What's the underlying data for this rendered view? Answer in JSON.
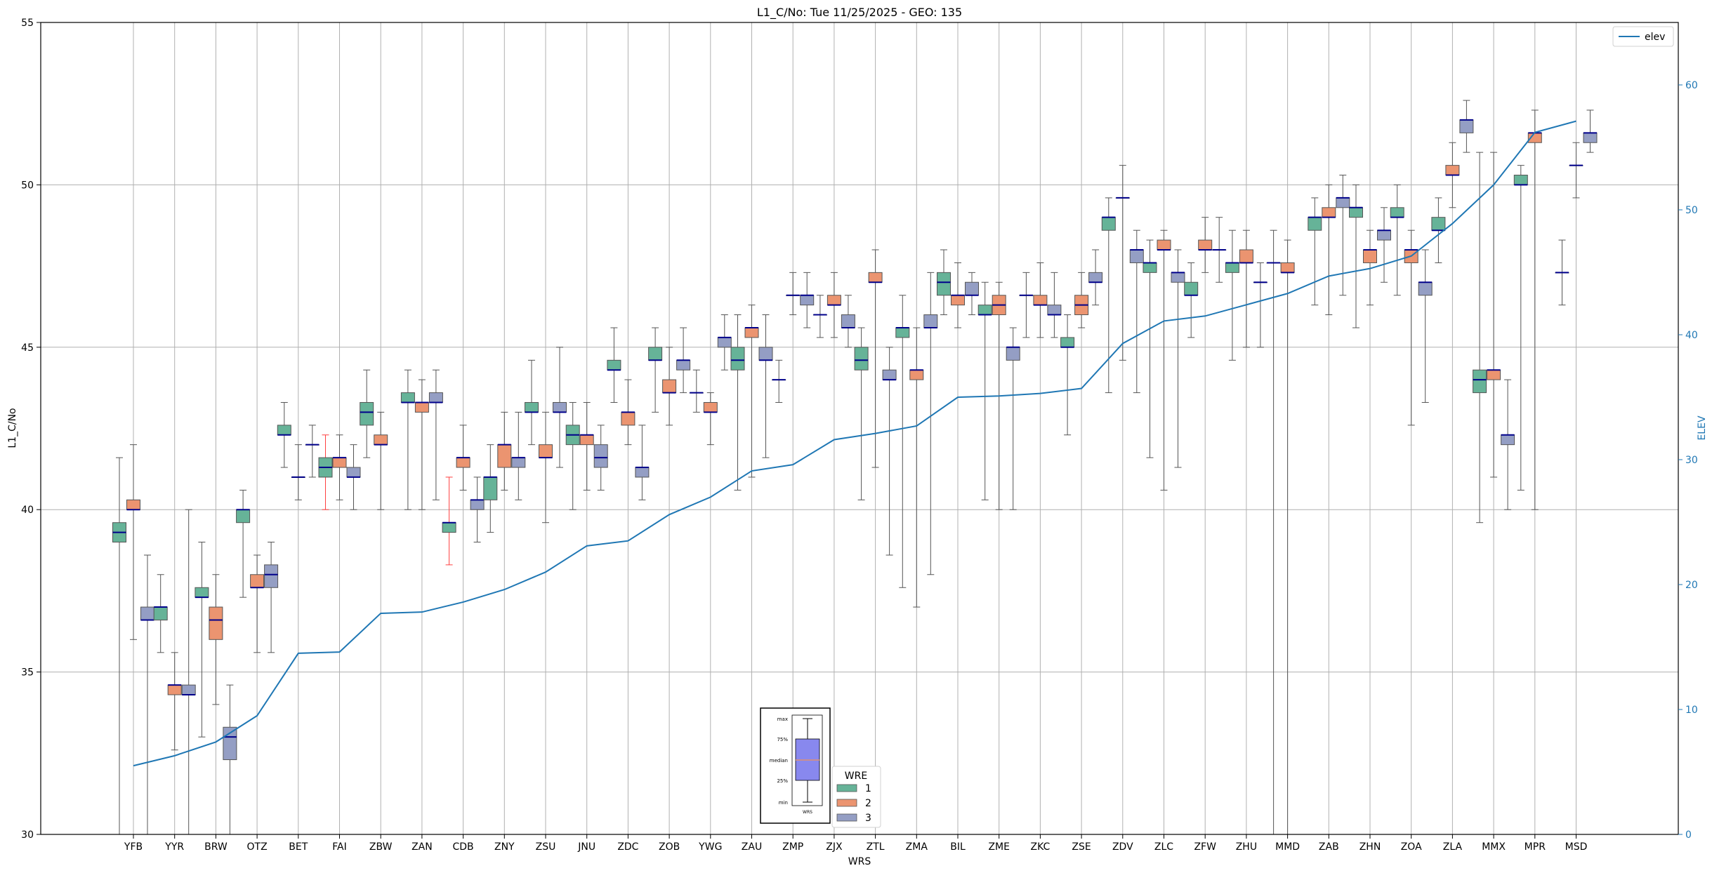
{
  "chart_data": {
    "type": "box",
    "title": "L1_C/No: Tue 11/25/2025 - GEO: 135",
    "xlabel": "WRS",
    "ylabel": "L1_C/No",
    "y2label": "ELEV",
    "ylim": [
      30,
      55
    ],
    "y2lim": [
      0,
      65
    ],
    "yticks": [
      30,
      35,
      40,
      45,
      50,
      55
    ],
    "y2ticks": [
      0,
      10,
      20,
      30,
      40,
      50,
      60
    ],
    "grid": true,
    "colors": {
      "1": "#66b398",
      "2": "#eb9470",
      "3": "#949ec4",
      "median": "#00008b",
      "elev": "#1f77b4",
      "alert": "#ff4040"
    },
    "categories": [
      "YFB",
      "YYR",
      "BRW",
      "OTZ",
      "BET",
      "FAI",
      "ZBW",
      "ZAN",
      "CDB",
      "ZNY",
      "ZSU",
      "JNU",
      "ZDC",
      "ZOB",
      "YWG",
      "ZAU",
      "ZMP",
      "ZJX",
      "ZTL",
      "ZMA",
      "BIL",
      "ZME",
      "ZKC",
      "ZSE",
      "ZDV",
      "ZLC",
      "ZFW",
      "ZHU",
      "MMD",
      "ZAB",
      "ZHN",
      "ZOA",
      "ZLA",
      "MMX",
      "MPR",
      "MSD"
    ],
    "boxes": [
      {
        "cat": "YFB",
        "wre": 1,
        "min": 30.0,
        "q1": 39.0,
        "median": 39.3,
        "q3": 39.6,
        "max": 41.6
      },
      {
        "cat": "YFB",
        "wre": 2,
        "min": 36.0,
        "q1": 40.0,
        "median": 40.0,
        "q3": 40.3,
        "max": 42.0
      },
      {
        "cat": "YFB",
        "wre": 3,
        "min": 30.0,
        "q1": 36.6,
        "median": 36.6,
        "q3": 37.0,
        "max": 38.6
      },
      {
        "cat": "YYR",
        "wre": 1,
        "min": 35.6,
        "q1": 36.6,
        "median": 37.0,
        "q3": 37.0,
        "max": 38.0
      },
      {
        "cat": "YYR",
        "wre": 2,
        "min": 32.6,
        "q1": 34.3,
        "median": 34.6,
        "q3": 34.6,
        "max": 35.6
      },
      {
        "cat": "YYR",
        "wre": 3,
        "min": 30.0,
        "q1": 34.3,
        "median": 34.3,
        "q3": 34.6,
        "max": 40.0
      },
      {
        "cat": "BRW",
        "wre": 1,
        "min": 33.0,
        "q1": 37.3,
        "median": 37.3,
        "q3": 37.6,
        "max": 39.0
      },
      {
        "cat": "BRW",
        "wre": 2,
        "min": 34.0,
        "q1": 36.0,
        "median": 36.6,
        "q3": 37.0,
        "max": 38.0
      },
      {
        "cat": "BRW",
        "wre": 3,
        "min": 30.0,
        "q1": 32.3,
        "median": 33.0,
        "q3": 33.3,
        "max": 34.6
      },
      {
        "cat": "OTZ",
        "wre": 1,
        "min": 37.3,
        "q1": 39.6,
        "median": 40.0,
        "q3": 40.0,
        "max": 40.6
      },
      {
        "cat": "OTZ",
        "wre": 2,
        "min": 35.6,
        "q1": 37.6,
        "median": 37.6,
        "q3": 38.0,
        "max": 38.6
      },
      {
        "cat": "OTZ",
        "wre": 3,
        "min": 35.6,
        "q1": 37.6,
        "median": 38.0,
        "q3": 38.3,
        "max": 39.0
      },
      {
        "cat": "BET",
        "wre": 1,
        "min": 41.3,
        "q1": 42.3,
        "median": 42.3,
        "q3": 42.6,
        "max": 43.3
      },
      {
        "cat": "BET",
        "wre": 2,
        "min": 40.3,
        "q1": 41.0,
        "median": 41.0,
        "q3": 41.0,
        "max": 42.0
      },
      {
        "cat": "BET",
        "wre": 3,
        "min": 41.0,
        "q1": 42.0,
        "median": 42.0,
        "q3": 42.0,
        "max": 42.6
      },
      {
        "cat": "FAI",
        "wre": 1,
        "min": 40.0,
        "q1": 41.0,
        "median": 41.3,
        "q3": 41.6,
        "max": 42.3,
        "alert": true
      },
      {
        "cat": "FAI",
        "wre": 2,
        "min": 40.3,
        "q1": 41.3,
        "median": 41.6,
        "q3": 41.6,
        "max": 42.3
      },
      {
        "cat": "FAI",
        "wre": 3,
        "min": 40.0,
        "q1": 41.0,
        "median": 41.0,
        "q3": 41.3,
        "max": 42.0
      },
      {
        "cat": "ZBW",
        "wre": 1,
        "min": 41.6,
        "q1": 42.6,
        "median": 43.0,
        "q3": 43.3,
        "max": 44.3
      },
      {
        "cat": "ZBW",
        "wre": 2,
        "min": 40.0,
        "q1": 42.0,
        "median": 42.0,
        "q3": 42.3,
        "max": 43.0
      },
      {
        "cat": "ZAN",
        "wre": 1,
        "min": 40.0,
        "q1": 43.3,
        "median": 43.3,
        "q3": 43.6,
        "max": 44.3
      },
      {
        "cat": "ZAN",
        "wre": 2,
        "min": 40.0,
        "q1": 43.0,
        "median": 43.3,
        "q3": 43.3,
        "max": 44.0
      },
      {
        "cat": "ZAN",
        "wre": 3,
        "min": 40.3,
        "q1": 43.3,
        "median": 43.3,
        "q3": 43.6,
        "max": 44.3
      },
      {
        "cat": "CDB",
        "wre": 1,
        "min": 38.3,
        "q1": 39.3,
        "median": 39.6,
        "q3": 39.6,
        "max": 41.0,
        "alert": true
      },
      {
        "cat": "CDB",
        "wre": 2,
        "min": 40.6,
        "q1": 41.3,
        "median": 41.6,
        "q3": 41.6,
        "max": 42.6
      },
      {
        "cat": "CDB",
        "wre": 3,
        "min": 39.0,
        "q1": 40.0,
        "median": 40.3,
        "q3": 40.3,
        "max": 41.0
      },
      {
        "cat": "ZNY",
        "wre": 1,
        "min": 39.3,
        "q1": 40.3,
        "median": 41.0,
        "q3": 41.0,
        "max": 42.0
      },
      {
        "cat": "ZNY",
        "wre": 2,
        "min": 40.6,
        "q1": 41.3,
        "median": 42.0,
        "q3": 42.0,
        "max": 43.0
      },
      {
        "cat": "ZNY",
        "wre": 3,
        "min": 40.3,
        "q1": 41.3,
        "median": 41.6,
        "q3": 41.6,
        "max": 43.0
      },
      {
        "cat": "ZSU",
        "wre": 1,
        "min": 42.0,
        "q1": 43.0,
        "median": 43.0,
        "q3": 43.3,
        "max": 44.6
      },
      {
        "cat": "ZSU",
        "wre": 2,
        "min": 39.6,
        "q1": 41.6,
        "median": 41.6,
        "q3": 42.0,
        "max": 43.0
      },
      {
        "cat": "ZSU",
        "wre": 3,
        "min": 41.3,
        "q1": 43.0,
        "median": 43.0,
        "q3": 43.3,
        "max": 45.0
      },
      {
        "cat": "JNU",
        "wre": 1,
        "min": 40.0,
        "q1": 42.0,
        "median": 42.3,
        "q3": 42.6,
        "max": 43.3
      },
      {
        "cat": "JNU",
        "wre": 2,
        "min": 40.6,
        "q1": 42.0,
        "median": 42.3,
        "q3": 42.3,
        "max": 43.3
      },
      {
        "cat": "JNU",
        "wre": 3,
        "min": 40.6,
        "q1": 41.3,
        "median": 41.6,
        "q3": 42.0,
        "max": 42.6
      },
      {
        "cat": "ZDC",
        "wre": 1,
        "min": 43.3,
        "q1": 44.3,
        "median": 44.3,
        "q3": 44.6,
        "max": 45.6
      },
      {
        "cat": "ZDC",
        "wre": 2,
        "min": 42.0,
        "q1": 42.6,
        "median": 43.0,
        "q3": 43.0,
        "max": 44.0
      },
      {
        "cat": "ZDC",
        "wre": 3,
        "min": 40.3,
        "q1": 41.0,
        "median": 41.3,
        "q3": 41.3,
        "max": 42.6
      },
      {
        "cat": "ZOB",
        "wre": 1,
        "min": 43.0,
        "q1": 44.6,
        "median": 44.6,
        "q3": 45.0,
        "max": 45.6
      },
      {
        "cat": "ZOB",
        "wre": 2,
        "min": 42.6,
        "q1": 43.6,
        "median": 43.6,
        "q3": 44.0,
        "max": 45.0
      },
      {
        "cat": "ZOB",
        "wre": 3,
        "min": 43.6,
        "q1": 44.3,
        "median": 44.6,
        "q3": 44.6,
        "max": 45.6
      },
      {
        "cat": "YWG",
        "wre": 1,
        "min": 43.0,
        "q1": 43.6,
        "median": 43.6,
        "q3": 43.6,
        "max": 44.3
      },
      {
        "cat": "YWG",
        "wre": 2,
        "min": 42.0,
        "q1": 43.0,
        "median": 43.0,
        "q3": 43.3,
        "max": 43.6
      },
      {
        "cat": "YWG",
        "wre": 3,
        "min": 44.3,
        "q1": 45.0,
        "median": 45.3,
        "q3": 45.3,
        "max": 46.0
      },
      {
        "cat": "ZAU",
        "wre": 1,
        "min": 40.6,
        "q1": 44.3,
        "median": 44.6,
        "q3": 45.0,
        "max": 46.0
      },
      {
        "cat": "ZAU",
        "wre": 2,
        "min": 41.0,
        "q1": 45.3,
        "median": 45.6,
        "q3": 45.6,
        "max": 46.3
      },
      {
        "cat": "ZAU",
        "wre": 3,
        "min": 41.6,
        "q1": 44.6,
        "median": 44.6,
        "q3": 45.0,
        "max": 46.0
      },
      {
        "cat": "ZMP",
        "wre": 1,
        "min": 43.3,
        "q1": 44.0,
        "median": 44.0,
        "q3": 44.0,
        "max": 44.6
      },
      {
        "cat": "ZMP",
        "wre": 2,
        "min": 46.0,
        "q1": 46.6,
        "median": 46.6,
        "q3": 46.6,
        "max": 47.3
      },
      {
        "cat": "ZMP",
        "wre": 3,
        "min": 45.6,
        "q1": 46.3,
        "median": 46.6,
        "q3": 46.6,
        "max": 47.3
      },
      {
        "cat": "ZJX",
        "wre": 1,
        "min": 45.3,
        "q1": 46.0,
        "median": 46.0,
        "q3": 46.0,
        "max": 46.6
      },
      {
        "cat": "ZJX",
        "wre": 2,
        "min": 45.3,
        "q1": 46.3,
        "median": 46.3,
        "q3": 46.6,
        "max": 47.3
      },
      {
        "cat": "ZJX",
        "wre": 3,
        "min": 45.0,
        "q1": 45.6,
        "median": 45.6,
        "q3": 46.0,
        "max": 46.6
      },
      {
        "cat": "ZTL",
        "wre": 1,
        "min": 40.3,
        "q1": 44.3,
        "median": 44.6,
        "q3": 45.0,
        "max": 45.6
      },
      {
        "cat": "ZTL",
        "wre": 2,
        "min": 41.3,
        "q1": 47.0,
        "median": 47.0,
        "q3": 47.3,
        "max": 48.0
      },
      {
        "cat": "ZTL",
        "wre": 3,
        "min": 38.6,
        "q1": 44.0,
        "median": 44.0,
        "q3": 44.3,
        "max": 45.0
      },
      {
        "cat": "ZMA",
        "wre": 1,
        "min": 37.6,
        "q1": 45.3,
        "median": 45.6,
        "q3": 45.6,
        "max": 46.6
      },
      {
        "cat": "ZMA",
        "wre": 2,
        "min": 37.0,
        "q1": 44.0,
        "median": 44.3,
        "q3": 44.3,
        "max": 45.6
      },
      {
        "cat": "ZMA",
        "wre": 3,
        "min": 38.0,
        "q1": 45.6,
        "median": 45.6,
        "q3": 46.0,
        "max": 47.3
      },
      {
        "cat": "BIL",
        "wre": 1,
        "min": 46.0,
        "q1": 46.6,
        "median": 47.0,
        "q3": 47.3,
        "max": 48.0
      },
      {
        "cat": "BIL",
        "wre": 2,
        "min": 45.6,
        "q1": 46.3,
        "median": 46.6,
        "q3": 46.6,
        "max": 47.6
      },
      {
        "cat": "BIL",
        "wre": 3,
        "min": 46.0,
        "q1": 46.6,
        "median": 46.6,
        "q3": 47.0,
        "max": 47.3
      },
      {
        "cat": "ZME",
        "wre": 1,
        "min": 40.3,
        "q1": 46.0,
        "median": 46.0,
        "q3": 46.3,
        "max": 47.0
      },
      {
        "cat": "ZME",
        "wre": 2,
        "min": 40.0,
        "q1": 46.0,
        "median": 46.3,
        "q3": 46.6,
        "max": 47.0
      },
      {
        "cat": "ZME",
        "wre": 3,
        "min": 40.0,
        "q1": 44.6,
        "median": 45.0,
        "q3": 45.0,
        "max": 45.6
      },
      {
        "cat": "ZKC",
        "wre": 1,
        "min": 45.3,
        "q1": 46.6,
        "median": 46.6,
        "q3": 46.6,
        "max": 47.3
      },
      {
        "cat": "ZKC",
        "wre": 2,
        "min": 45.3,
        "q1": 46.3,
        "median": 46.3,
        "q3": 46.6,
        "max": 47.6
      },
      {
        "cat": "ZKC",
        "wre": 3,
        "min": 45.3,
        "q1": 46.0,
        "median": 46.0,
        "q3": 46.3,
        "max": 47.3
      },
      {
        "cat": "ZSE",
        "wre": 1,
        "min": 42.3,
        "q1": 45.0,
        "median": 45.0,
        "q3": 45.3,
        "max": 46.0
      },
      {
        "cat": "ZSE",
        "wre": 2,
        "min": 45.6,
        "q1": 46.0,
        "median": 46.3,
        "q3": 46.6,
        "max": 47.3
      },
      {
        "cat": "ZSE",
        "wre": 3,
        "min": 46.3,
        "q1": 47.0,
        "median": 47.0,
        "q3": 47.3,
        "max": 48.0
      },
      {
        "cat": "ZDV",
        "wre": 1,
        "min": 43.6,
        "q1": 48.6,
        "median": 49.0,
        "q3": 49.0,
        "max": 49.6
      },
      {
        "cat": "ZDV",
        "wre": 2,
        "min": 44.6,
        "q1": 49.6,
        "median": 49.6,
        "q3": 49.6,
        "max": 50.6
      },
      {
        "cat": "ZDV",
        "wre": 3,
        "min": 43.6,
        "q1": 47.6,
        "median": 48.0,
        "q3": 48.0,
        "max": 48.6
      },
      {
        "cat": "ZLC",
        "wre": 1,
        "min": 41.6,
        "q1": 47.3,
        "median": 47.6,
        "q3": 47.6,
        "max": 48.3
      },
      {
        "cat": "ZLC",
        "wre": 2,
        "min": 40.6,
        "q1": 48.0,
        "median": 48.0,
        "q3": 48.3,
        "max": 48.6
      },
      {
        "cat": "ZLC",
        "wre": 3,
        "min": 41.3,
        "q1": 47.0,
        "median": 47.3,
        "q3": 47.3,
        "max": 48.0
      },
      {
        "cat": "ZFW",
        "wre": 1,
        "min": 45.3,
        "q1": 46.6,
        "median": 46.6,
        "q3": 47.0,
        "max": 47.6
      },
      {
        "cat": "ZFW",
        "wre": 2,
        "min": 47.3,
        "q1": 48.0,
        "median": 48.0,
        "q3": 48.3,
        "max": 49.0
      },
      {
        "cat": "ZFW",
        "wre": 3,
        "min": 47.0,
        "q1": 48.0,
        "median": 48.0,
        "q3": 48.0,
        "max": 49.0
      },
      {
        "cat": "ZHU",
        "wre": 1,
        "min": 44.6,
        "q1": 47.3,
        "median": 47.6,
        "q3": 47.6,
        "max": 48.6
      },
      {
        "cat": "ZHU",
        "wre": 2,
        "min": 45.0,
        "q1": 47.6,
        "median": 47.6,
        "q3": 48.0,
        "max": 48.6
      },
      {
        "cat": "ZHU",
        "wre": 3,
        "min": 45.0,
        "q1": 47.0,
        "median": 47.0,
        "q3": 47.0,
        "max": 47.6
      },
      {
        "cat": "MMD",
        "wre": 1,
        "min": 30.0,
        "q1": 47.6,
        "median": 47.6,
        "q3": 47.6,
        "max": 48.6
      },
      {
        "cat": "MMD",
        "wre": 2,
        "min": 30.0,
        "q1": 47.3,
        "median": 47.3,
        "q3": 47.6,
        "max": 48.3
      },
      {
        "cat": "ZAB",
        "wre": 1,
        "min": 46.3,
        "q1": 48.6,
        "median": 49.0,
        "q3": 49.0,
        "max": 49.6
      },
      {
        "cat": "ZAB",
        "wre": 2,
        "min": 46.0,
        "q1": 49.0,
        "median": 49.0,
        "q3": 49.3,
        "max": 50.0
      },
      {
        "cat": "ZAB",
        "wre": 3,
        "min": 46.6,
        "q1": 49.3,
        "median": 49.6,
        "q3": 49.6,
        "max": 50.3
      },
      {
        "cat": "ZHN",
        "wre": 1,
        "min": 45.6,
        "q1": 49.0,
        "median": 49.3,
        "q3": 49.3,
        "max": 50.0
      },
      {
        "cat": "ZHN",
        "wre": 2,
        "min": 46.3,
        "q1": 47.6,
        "median": 48.0,
        "q3": 48.0,
        "max": 48.6
      },
      {
        "cat": "ZHN",
        "wre": 3,
        "min": 47.0,
        "q1": 48.3,
        "median": 48.6,
        "q3": 48.6,
        "max": 49.3
      },
      {
        "cat": "ZOA",
        "wre": 1,
        "min": 46.6,
        "q1": 49.0,
        "median": 49.0,
        "q3": 49.3,
        "max": 50.0
      },
      {
        "cat": "ZOA",
        "wre": 2,
        "min": 42.6,
        "q1": 47.6,
        "median": 48.0,
        "q3": 48.0,
        "max": 48.6
      },
      {
        "cat": "ZOA",
        "wre": 3,
        "min": 43.3,
        "q1": 46.6,
        "median": 47.0,
        "q3": 47.0,
        "max": 48.0
      },
      {
        "cat": "ZLA",
        "wre": 1,
        "min": 47.6,
        "q1": 48.6,
        "median": 48.6,
        "q3": 49.0,
        "max": 49.6
      },
      {
        "cat": "ZLA",
        "wre": 2,
        "min": 49.3,
        "q1": 50.3,
        "median": 50.3,
        "q3": 50.6,
        "max": 51.3
      },
      {
        "cat": "ZLA",
        "wre": 3,
        "min": 51.0,
        "q1": 51.6,
        "median": 52.0,
        "q3": 52.0,
        "max": 52.6
      },
      {
        "cat": "MMX",
        "wre": 1,
        "min": 39.6,
        "q1": 43.6,
        "median": 44.0,
        "q3": 44.3,
        "max": 51.0
      },
      {
        "cat": "MMX",
        "wre": 2,
        "min": 41.0,
        "q1": 44.0,
        "median": 44.3,
        "q3": 44.3,
        "max": 51.0
      },
      {
        "cat": "MMX",
        "wre": 3,
        "min": 40.0,
        "q1": 42.0,
        "median": 42.3,
        "q3": 42.3,
        "max": 44.0
      },
      {
        "cat": "MPR",
        "wre": 1,
        "min": 40.6,
        "q1": 50.0,
        "median": 50.0,
        "q3": 50.3,
        "max": 50.6
      },
      {
        "cat": "MPR",
        "wre": 2,
        "min": 40.0,
        "q1": 51.3,
        "median": 51.6,
        "q3": 51.6,
        "max": 52.3
      },
      {
        "cat": "MSD",
        "wre": 1,
        "min": 46.3,
        "q1": 47.3,
        "median": 47.3,
        "q3": 47.3,
        "max": 48.3
      },
      {
        "cat": "MSD",
        "wre": 2,
        "min": 49.6,
        "q1": 50.6,
        "median": 50.6,
        "q3": 50.6,
        "max": 51.3
      },
      {
        "cat": "MSD",
        "wre": 3,
        "min": 51.0,
        "q1": 51.3,
        "median": 51.6,
        "q3": 51.6,
        "max": 52.3
      }
    ],
    "elev": [
      5.5,
      6.3,
      7.4,
      9.5,
      14.5,
      14.6,
      17.7,
      17.8,
      18.6,
      19.6,
      21.0,
      23.1,
      23.5,
      25.6,
      27.0,
      29.1,
      29.6,
      31.6,
      32.1,
      32.7,
      35.0,
      35.1,
      35.3,
      35.7,
      39.3,
      41.1,
      41.5,
      42.4,
      43.3,
      44.7,
      45.3,
      46.3,
      48.9,
      52.0,
      56.2,
      57.1
    ],
    "legend": {
      "series_label": "elev",
      "title": "WRE",
      "entries": [
        "1",
        "2",
        "3"
      ]
    },
    "inset": {
      "labels": [
        "max",
        "75%",
        "median",
        "25%",
        "min"
      ],
      "xlabel": "WRS"
    }
  }
}
